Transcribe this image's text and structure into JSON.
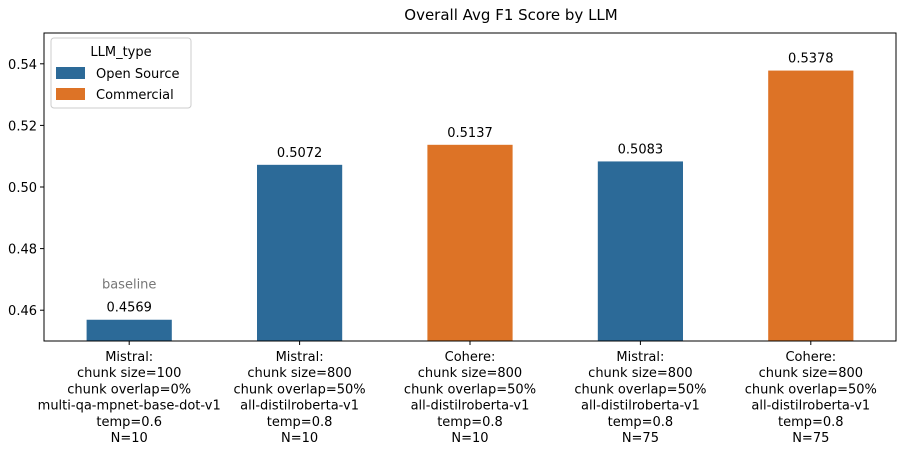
{
  "chart_data": {
    "type": "bar",
    "title": "Overall Avg F1 Score by LLM",
    "xlabel": "",
    "ylabel": "",
    "ylim": [
      0.45,
      0.55
    ],
    "yticks": [
      0.46,
      0.48,
      0.5,
      0.52,
      0.54
    ],
    "ytick_labels": [
      "0.46",
      "0.48",
      "0.50",
      "0.52",
      "0.54"
    ],
    "grid": false,
    "legend": {
      "title": "LLM_type",
      "placement": "upper-left",
      "entries": [
        {
          "name": "Open Source",
          "color": "#2c6a98"
        },
        {
          "name": "Commercial",
          "color": "#dd7326"
        }
      ]
    },
    "bars": [
      {
        "category_lines": [
          "Mistral:",
          "chunk size=100",
          "chunk overlap=0%",
          "multi-qa-mpnet-base-dot-v1",
          "temp=0.6",
          "N=10"
        ],
        "value": 0.4569,
        "value_label": "0.4569",
        "llm_type": "Open Source",
        "annotation": "baseline"
      },
      {
        "category_lines": [
          "Mistral:",
          "chunk size=800",
          "chunk overlap=50%",
          "all-distilroberta-v1",
          "temp=0.8",
          "N=10"
        ],
        "value": 0.5072,
        "value_label": "0.5072",
        "llm_type": "Open Source"
      },
      {
        "category_lines": [
          "Cohere:",
          "chunk size=800",
          "chunk overlap=50%",
          "all-distilroberta-v1",
          "temp=0.8",
          "N=10"
        ],
        "value": 0.5137,
        "value_label": "0.5137",
        "llm_type": "Commercial"
      },
      {
        "category_lines": [
          "Mistral:",
          "chunk size=800",
          "chunk overlap=50%",
          "all-distilroberta-v1",
          "temp=0.8",
          "N=75"
        ],
        "value": 0.5083,
        "value_label": "0.5083",
        "llm_type": "Open Source"
      },
      {
        "category_lines": [
          "Cohere:",
          "chunk size=800",
          "chunk overlap=50%",
          "all-distilroberta-v1",
          "temp=0.8",
          "N=75"
        ],
        "value": 0.5378,
        "value_label": "0.5378",
        "llm_type": "Commercial"
      }
    ]
  }
}
